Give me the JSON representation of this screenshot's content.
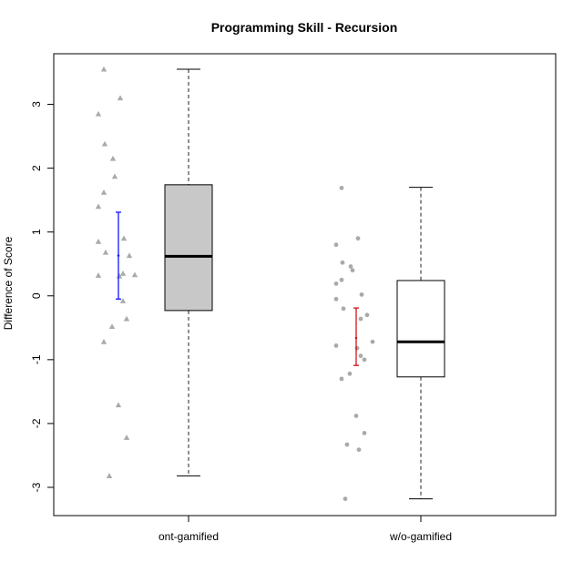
{
  "chart_data": {
    "type": "box",
    "title": "Programming Skill - Recursion",
    "xlabel": "",
    "ylabel": "Difference of Score",
    "ylim": [
      -3.45,
      3.8
    ],
    "yticks": [
      -3,
      -2,
      -1,
      0,
      1,
      2,
      3
    ],
    "grid": false,
    "legend": "none",
    "categories": [
      "ont-gamified",
      "w/o-gamified"
    ],
    "boxes": [
      {
        "category": "ont-gamified",
        "whisker_low": -2.82,
        "q1": -0.23,
        "median": 0.62,
        "q3": 1.74,
        "whisker_high": 3.55,
        "fill": "#c8c8c8"
      },
      {
        "category": "w/o-gamified",
        "whisker_low": -3.18,
        "q1": -1.27,
        "median": -0.72,
        "q3": 0.24,
        "whisker_high": 1.7,
        "fill": "#ffffff"
      }
    ],
    "error_bars": [
      {
        "category": "ont-gamified",
        "mean": 0.63,
        "low": -0.05,
        "high": 1.31,
        "color": "#0000ff"
      },
      {
        "category": "w/o-gamified",
        "mean": -0.66,
        "low": -1.09,
        "high": -0.19,
        "color": "#cc0000"
      }
    ],
    "points": [
      {
        "category": "ont-gamified",
        "marker": "triangle",
        "color": "#aaaaaa",
        "y": [
          3.55,
          3.1,
          2.85,
          2.38,
          2.15,
          1.87,
          1.62,
          1.4,
          0.9,
          0.85,
          0.68,
          0.63,
          0.35,
          0.33,
          0.32,
          0.31,
          -0.08,
          -0.36,
          -0.48,
          -0.72,
          -1.71,
          -2.22,
          -2.82
        ]
      },
      {
        "category": "w/o-gamified",
        "marker": "circle",
        "color": "#aaaaaa",
        "y": [
          1.69,
          0.9,
          0.8,
          0.52,
          0.46,
          0.4,
          0.25,
          0.19,
          0.02,
          -0.05,
          -0.2,
          -0.3,
          -0.36,
          -0.72,
          -0.78,
          -0.82,
          -0.94,
          -1.0,
          -1.22,
          -1.3,
          -1.88,
          -2.15,
          -2.33,
          -2.41,
          -3.18
        ]
      }
    ]
  }
}
